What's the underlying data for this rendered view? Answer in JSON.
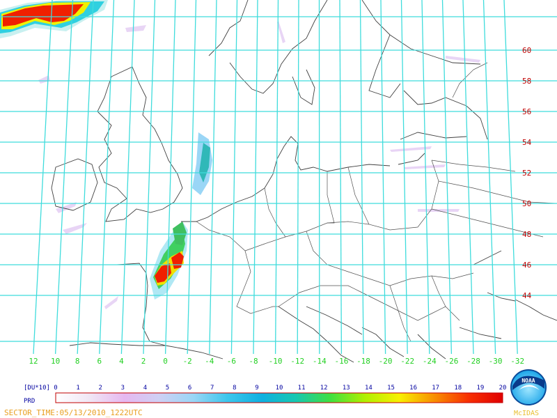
{
  "map": {
    "lat_labels": [
      "60",
      "58",
      "56",
      "54",
      "52",
      "50",
      "48",
      "46",
      "44"
    ],
    "lon_labels": [
      "12",
      "10",
      "8",
      "6",
      "4",
      "2",
      "0",
      "-2",
      "-4",
      "-6",
      "-8",
      "-10",
      "-12",
      "-14",
      "-16",
      "-18",
      "-20",
      "-22",
      "-24",
      "-26",
      "-28",
      "-30",
      "-32"
    ],
    "colors": {
      "grid": "#3fdcdc",
      "coast": "#404040",
      "lat_label": "#c00000",
      "lon_label": "#22d022"
    }
  },
  "legend": {
    "unit_label": "[DU*10]",
    "product_label": "PRD",
    "ticks": [
      "0",
      "1",
      "2",
      "3",
      "4",
      "5",
      "6",
      "7",
      "8",
      "9",
      "10",
      "11",
      "12",
      "13",
      "14",
      "15",
      "16",
      "17",
      "18",
      "19",
      "20"
    ],
    "gradient_colors": [
      "#ffffff",
      "#f0e6f4",
      "#e6b8f0",
      "#cfd0f4",
      "#9ad6f6",
      "#3cc6ec",
      "#10b0e0",
      "#18c8b0",
      "#40e040",
      "#b0f000",
      "#f8f000",
      "#f89000",
      "#f83000",
      "#e00000"
    ]
  },
  "footer": {
    "sector_time": "SECTOR_TIME:05/13/2010_1222UTC"
  },
  "logo": {
    "noaa_text": "NOAA",
    "mcidas_text": "McIDAS"
  }
}
